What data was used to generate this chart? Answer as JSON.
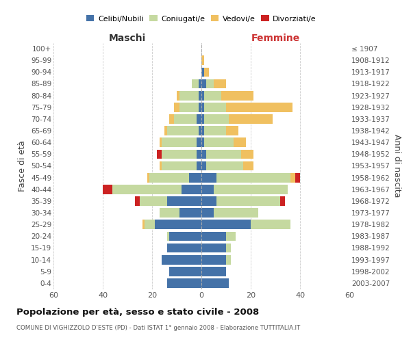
{
  "age_groups": [
    "0-4",
    "5-9",
    "10-14",
    "15-19",
    "20-24",
    "25-29",
    "30-34",
    "35-39",
    "40-44",
    "45-49",
    "50-54",
    "55-59",
    "60-64",
    "65-69",
    "70-74",
    "75-79",
    "80-84",
    "85-89",
    "90-94",
    "95-99",
    "100+"
  ],
  "birth_years": [
    "2003-2007",
    "1998-2002",
    "1993-1997",
    "1988-1992",
    "1983-1987",
    "1978-1982",
    "1973-1977",
    "1968-1972",
    "1963-1967",
    "1958-1962",
    "1953-1957",
    "1948-1952",
    "1943-1947",
    "1938-1942",
    "1933-1937",
    "1928-1932",
    "1923-1927",
    "1918-1922",
    "1913-1917",
    "1908-1912",
    "≤ 1907"
  ],
  "males_celibi": [
    14,
    13,
    16,
    14,
    13,
    19,
    9,
    14,
    8,
    5,
    2,
    2,
    2,
    1,
    2,
    1,
    1,
    1,
    0,
    0,
    0
  ],
  "males_coniugati": [
    0,
    0,
    0,
    0,
    1,
    4,
    8,
    11,
    28,
    16,
    14,
    14,
    14,
    13,
    9,
    8,
    8,
    3,
    0,
    0,
    0
  ],
  "males_vedovi": [
    0,
    0,
    0,
    0,
    0,
    1,
    0,
    0,
    0,
    1,
    1,
    0,
    1,
    1,
    2,
    2,
    1,
    0,
    0,
    0,
    0
  ],
  "males_divorziati": [
    0,
    0,
    0,
    0,
    0,
    0,
    0,
    2,
    4,
    0,
    0,
    2,
    0,
    0,
    0,
    0,
    0,
    0,
    0,
    0,
    0
  ],
  "females_nubili": [
    11,
    10,
    10,
    10,
    10,
    20,
    5,
    6,
    5,
    6,
    2,
    2,
    1,
    1,
    1,
    1,
    1,
    2,
    1,
    0,
    0
  ],
  "females_coniugate": [
    0,
    0,
    2,
    2,
    4,
    16,
    18,
    26,
    30,
    30,
    15,
    14,
    12,
    9,
    10,
    9,
    7,
    3,
    0,
    0,
    0
  ],
  "females_vedove": [
    0,
    0,
    0,
    0,
    0,
    0,
    0,
    0,
    0,
    2,
    4,
    5,
    5,
    5,
    18,
    27,
    13,
    5,
    2,
    1,
    0
  ],
  "females_divorziate": [
    0,
    0,
    0,
    0,
    0,
    0,
    0,
    2,
    0,
    2,
    0,
    0,
    0,
    0,
    0,
    0,
    0,
    0,
    0,
    0,
    0
  ],
  "color_celibi": "#4472a8",
  "color_coniugati": "#c5d9a0",
  "color_vedovi": "#f0c060",
  "color_divorziati": "#cc2222",
  "xlim": 60,
  "title": "Popolazione per età, sesso e stato civile - 2008",
  "subtitle": "COMUNE DI VIGHIZZOLO D'ESTE (PD) - Dati ISTAT 1° gennaio 2008 - Elaborazione TUTTITALIA.IT",
  "ylabel_left": "Fasce di età",
  "ylabel_right": "Anni di nascita",
  "label_maschi": "Maschi",
  "label_femmine": "Femmine",
  "legend_labels": [
    "Celibi/Nubili",
    "Coniugati/e",
    "Vedovi/e",
    "Divorziati/e"
  ],
  "bg_color": "#ffffff",
  "grid_color": "#cccccc"
}
